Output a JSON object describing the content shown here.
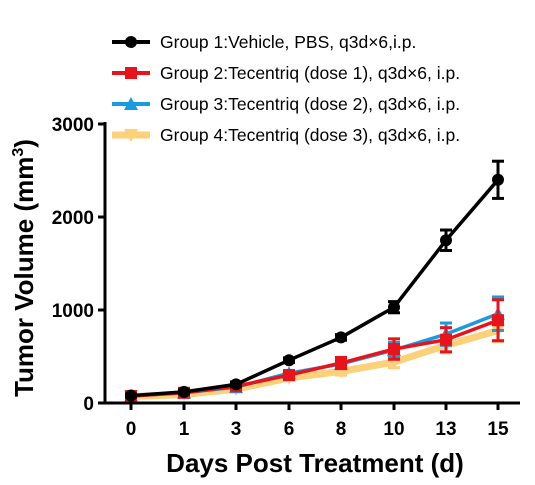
{
  "chart_data": {
    "type": "line",
    "xlabel": "Days Post Treatment (d)",
    "ylabel_main": "Tumor Volume (mm",
    "ylabel_sup": "3",
    "ylabel_close": ")",
    "categories": [
      "0",
      "1",
      "3",
      "6",
      "8",
      "10",
      "13",
      "15"
    ],
    "ylim": [
      0,
      3000
    ],
    "yticks": [
      "0",
      "1000",
      "2000",
      "3000"
    ],
    "yticks_values": [
      0,
      1000,
      2000,
      3000
    ],
    "legend_position": "top",
    "series": [
      {
        "name": "Group 1:Vehicle, PBS, q3d×6,i.p.",
        "color": "#000000",
        "marker": "circle",
        "values": [
          80,
          120,
          200,
          460,
          705,
          1030,
          1750,
          2400
        ],
        "errors": [
          15,
          20,
          25,
          25,
          30,
          60,
          110,
          200
        ]
      },
      {
        "name": "Group 2:Tecentriq (dose 1), q3d×6, i.p.",
        "color": "#e8141b",
        "marker": "square",
        "values": [
          75,
          110,
          180,
          300,
          430,
          580,
          680,
          890
        ],
        "errors": [
          10,
          15,
          20,
          25,
          60,
          110,
          130,
          220
        ]
      },
      {
        "name": "Group 3:Tecentriq (dose 2), q3d×6, i.p.",
        "color": "#1a9ae0",
        "marker": "triangle-up",
        "values": [
          75,
          110,
          170,
          320,
          420,
          570,
          740,
          960
        ],
        "errors": [
          10,
          15,
          20,
          30,
          50,
          80,
          120,
          180
        ]
      },
      {
        "name": "Group 4:Tecentriq (dose 3), q3d×6, i.p.",
        "color": "#fdd07a",
        "marker": "triangle-down",
        "values": [
          70,
          90,
          150,
          270,
          340,
          440,
          620,
          780
        ],
        "errors": [
          10,
          15,
          15,
          25,
          40,
          60,
          80,
          120
        ]
      }
    ]
  }
}
